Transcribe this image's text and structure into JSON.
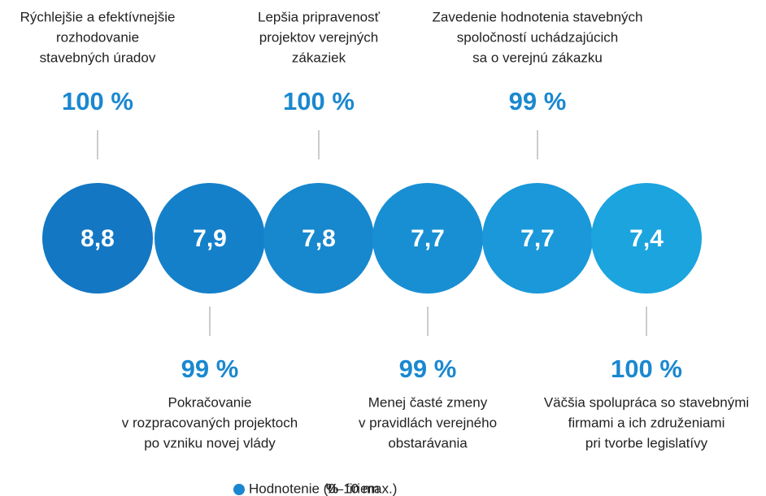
{
  "chart_data": {
    "type": "rating-circles",
    "categories": [
      [
        "Rýchlejšie a efektívnejšie",
        "rozhodovanie",
        "stavebných úradov"
      ],
      [
        "Pokračovanie",
        "v rozpracovaných projektoch",
        "po vzniku novej vlády"
      ],
      [
        "Lepšia pripravenosť",
        "projektov verejných",
        "zákaziek"
      ],
      [
        "Menej časté zmeny",
        "v pravidlách verejného",
        "obstarávania"
      ],
      [
        "Zavedenie hodnotenia stavebných",
        "spoločností uchádzajúcich",
        "sa o verejnú zákazku"
      ],
      [
        "Väčšia spolupráca so stavebnými",
        "firmami a ich združeniami",
        "pri tvorbe legislatívy"
      ]
    ],
    "series": [
      {
        "name": "Hodnotenie (0–10 max.)",
        "color": "#1a86cf",
        "colors": [
          "#1377c3",
          "#1580ca",
          "#1787ce",
          "#188fd3",
          "#1a98d9",
          "#1ca4df"
        ],
        "values": [
          8.8,
          7.9,
          7.8,
          7.7,
          7.7,
          7.4
        ],
        "value_labels": [
          "8,8",
          "7,9",
          "7,8",
          "7,7",
          "7,7",
          "7,4"
        ]
      },
      {
        "name": "firiem",
        "symbol": "%",
        "color": "#1a88d0",
        "values": [
          100,
          99,
          100,
          99,
          99,
          100
        ],
        "value_labels": [
          "100 %",
          "99 %",
          "100 %",
          "99 %",
          "99 %",
          "100 %"
        ]
      }
    ]
  }
}
